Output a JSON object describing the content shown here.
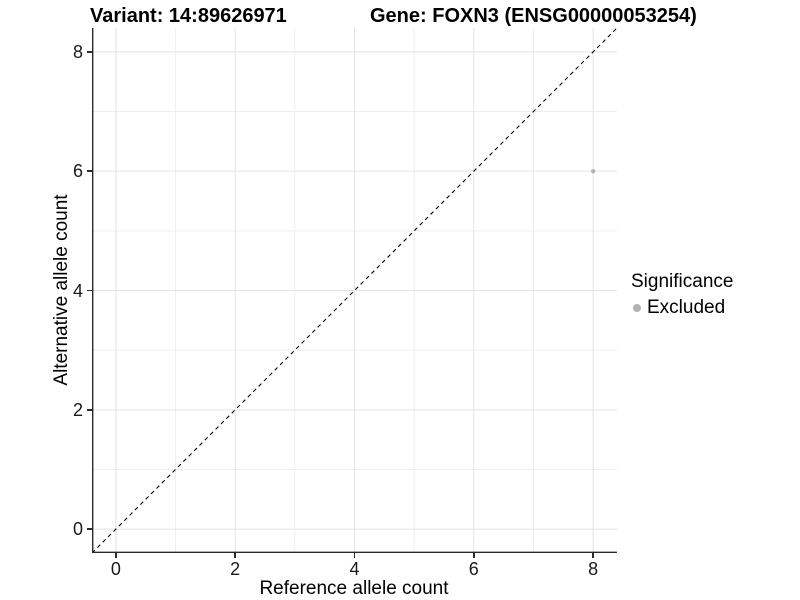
{
  "titles": {
    "left": "Variant: 14:89626971",
    "right": "Gene: FOXN3 (ENSG00000053254)"
  },
  "colors": {
    "grid_major": "#e3e3e3",
    "grid_minor": "#efefef",
    "axis_line": "#2b2b2b",
    "identity_line": "#000000",
    "point": "#b3b3b3",
    "background": "#ffffff"
  },
  "chart_data": {
    "type": "scatter",
    "title_left": "Variant: 14:89626971",
    "title_right": "Gene: FOXN3 (ENSG00000053254)",
    "xlabel": "Reference allele count",
    "ylabel": "Alternative allele count",
    "xlim": [
      -0.4,
      8.4
    ],
    "ylim": [
      -0.4,
      8.4
    ],
    "xticks": [
      0,
      2,
      4,
      6,
      8
    ],
    "yticks": [
      0,
      2,
      4,
      6,
      8
    ],
    "xminor": [
      1,
      3,
      5,
      7
    ],
    "yminor": [
      1,
      3,
      5,
      7
    ],
    "grid": true,
    "marker_radius": 2.2,
    "identity_line": {
      "style": "dashed",
      "from": [
        -0.4,
        -0.4
      ],
      "to": [
        8.4,
        8.4
      ]
    },
    "points": [
      {
        "x": 8,
        "y": 6,
        "series": "Excluded",
        "color": "#b3b3b3"
      }
    ],
    "legend": {
      "title": "Significance",
      "position": "right",
      "entries": [
        {
          "label": "Excluded",
          "color": "#b3b3b3",
          "marker": "circle"
        }
      ]
    }
  }
}
